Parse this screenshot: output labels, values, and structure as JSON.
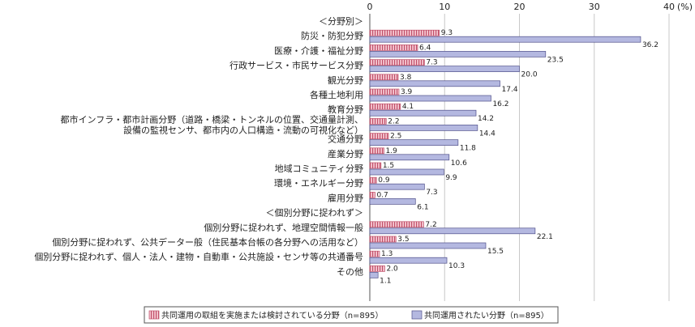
{
  "chart_data": {
    "type": "bar",
    "orientation": "horizontal",
    "unit": "(%)",
    "xlim": [
      0,
      40
    ],
    "ticks": [
      0,
      10,
      20,
      30,
      40
    ],
    "grid": true,
    "colors": {
      "series1": "#f0aab8",
      "series1_stroke": "#c0506a",
      "series2": "#b4b8e0",
      "series2_stroke": "#50508a"
    },
    "rows": [
      {
        "label": [
          "＜分野別＞"
        ],
        "header": true
      },
      {
        "label": [
          "防災・防犯分野"
        ],
        "v1": 9.3,
        "v2": 36.2
      },
      {
        "label": [
          "医療・介護・福祉分野"
        ],
        "v1": 6.4,
        "v2": 23.5
      },
      {
        "label": [
          "行政サービス・市民サービス分野"
        ],
        "v1": 7.3,
        "v2": 20.0
      },
      {
        "label": [
          "観光分野"
        ],
        "v1": 3.8,
        "v2": 17.4
      },
      {
        "label": [
          "各種土地利用"
        ],
        "v1": 3.9,
        "v2": 16.2
      },
      {
        "label": [
          "教育分野"
        ],
        "v1": 4.1,
        "v2": 14.2
      },
      {
        "label": [
          "都市インフラ・都市計画分野（道路・橋梁・トンネルの位置、交通量計測、",
          "設備の監視センサ、都市内の人口構造・流動の可視化など）"
        ],
        "v1": 2.2,
        "v2": 14.4
      },
      {
        "label": [
          "交通分野"
        ],
        "v1": 2.5,
        "v2": 11.8
      },
      {
        "label": [
          "産業分野"
        ],
        "v1": 1.9,
        "v2": 10.6
      },
      {
        "label": [
          "地域コミュニティ分野"
        ],
        "v1": 1.5,
        "v2": 9.9
      },
      {
        "label": [
          "環境・エネルギー分野"
        ],
        "v1": 0.9,
        "v2": 7.3
      },
      {
        "label": [
          "雇用分野"
        ],
        "v1": 0.7,
        "v2": 6.1
      },
      {
        "label": [
          "＜個別分野に捉われず＞"
        ],
        "header": true
      },
      {
        "label": [
          "個別分野に捉われず、地理空間情報一般"
        ],
        "v1": 7.2,
        "v2": 22.1
      },
      {
        "label": [
          "個別分野に捉われず、公共データー般（住民基本台帳の各分野への活用など）"
        ],
        "v1": 3.5,
        "v2": 15.5
      },
      {
        "label": [
          "個別分野に捉われず、個人・法人・建物・自動車・公共施設・センサ等の共通番号"
        ],
        "v1": 1.3,
        "v2": 10.3
      },
      {
        "label": [
          "その他"
        ],
        "v1": 2.0,
        "v2": 1.1
      }
    ],
    "series": [
      {
        "name": "共同運用の取組を実施または検討されている分野（n=895）"
      },
      {
        "name": "共同運用されたい分野（n=895）"
      }
    ]
  }
}
